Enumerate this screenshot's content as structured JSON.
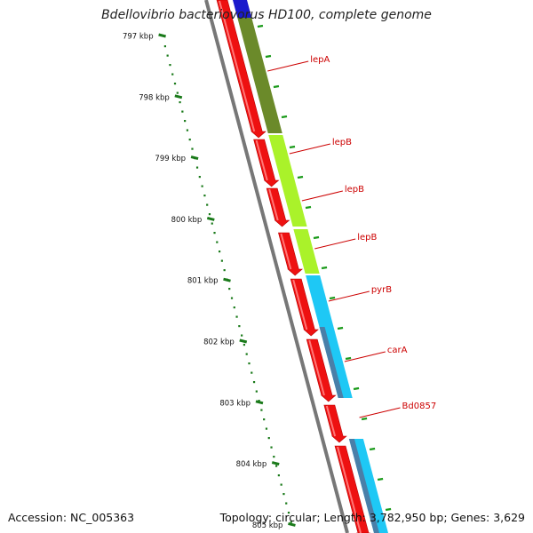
{
  "title": "Bdellovibrio bacteriovorus HD100, complete genome",
  "footer": {
    "accession_label": "Accession:",
    "accession_value": "NC_005363",
    "topology_label": "Topology:",
    "topology_value": "circular",
    "length_label": "Length:",
    "length_value": "3,782,950 bp",
    "genes_label": "Genes:",
    "genes_value": "3,629"
  },
  "ruler": {
    "unit": "kbp",
    "ticks": [
      "797 kbp",
      "798 kbp",
      "799 kbp",
      "800 kbp",
      "801 kbp",
      "802 kbp",
      "803 kbp",
      "804 kbp",
      "805 kbp"
    ],
    "color": "#1a7a1a"
  },
  "genes": [
    {
      "name": "lepA"
    },
    {
      "name": "lepB"
    },
    {
      "name": "lepB"
    },
    {
      "name": "lepB"
    },
    {
      "name": "pyrB"
    },
    {
      "name": "carA"
    },
    {
      "name": "Bd0857"
    }
  ],
  "colors": {
    "gene_arrow": "#ee1111",
    "label": "#cc0000",
    "backbone": "#777777",
    "cog_dark_olive": "#6b8a2a",
    "cog_light_green": "#aaf22a",
    "cog_cyan": "#1ec8f5",
    "cog_steel": "#4a7fa8",
    "cog_blue": "#1a1acc"
  }
}
